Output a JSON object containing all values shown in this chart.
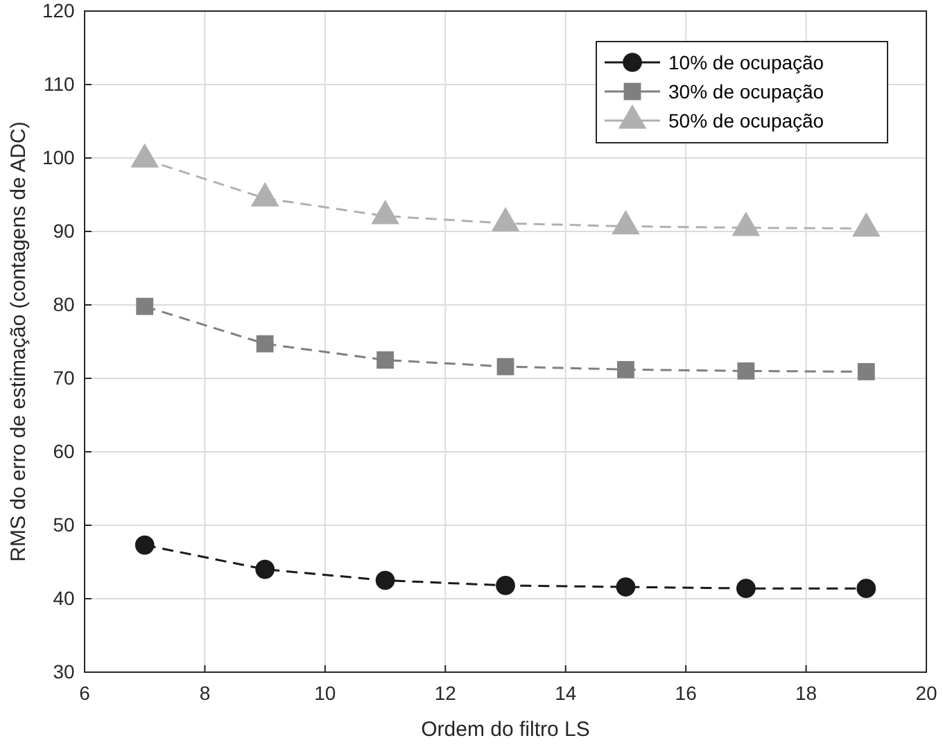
{
  "chart_data": {
    "type": "line",
    "xlabel": "Ordem do filtro LS",
    "ylabel": "RMS do erro de estimação (contagens de ADC)",
    "x": [
      7,
      9,
      11,
      13,
      15,
      17,
      19
    ],
    "xlim": [
      6,
      20
    ],
    "xticks": [
      6,
      8,
      10,
      12,
      14,
      16,
      18,
      20
    ],
    "ylim": [
      30,
      120
    ],
    "yticks": [
      30,
      40,
      50,
      60,
      70,
      80,
      90,
      100,
      110,
      120
    ],
    "grid": true,
    "legend": "top right",
    "line_style": "dashed",
    "series": [
      {
        "name": "10% de ocupação",
        "color": "#1a1a1a",
        "marker": "circle",
        "values": [
          47.3,
          44,
          42.5,
          41.8,
          41.6,
          41.4,
          41.4
        ]
      },
      {
        "name": "30% de ocupação",
        "color": "#7f7f7f",
        "marker": "square",
        "values": [
          79.8,
          74.7,
          72.5,
          71.6,
          71.2,
          71.0,
          70.9
        ]
      },
      {
        "name": "50% de ocupação",
        "color": "#b0b0b0",
        "marker": "triangle",
        "values": [
          99.8,
          94.5,
          92.1,
          91.1,
          90.7,
          90.5,
          90.4
        ]
      }
    ]
  }
}
